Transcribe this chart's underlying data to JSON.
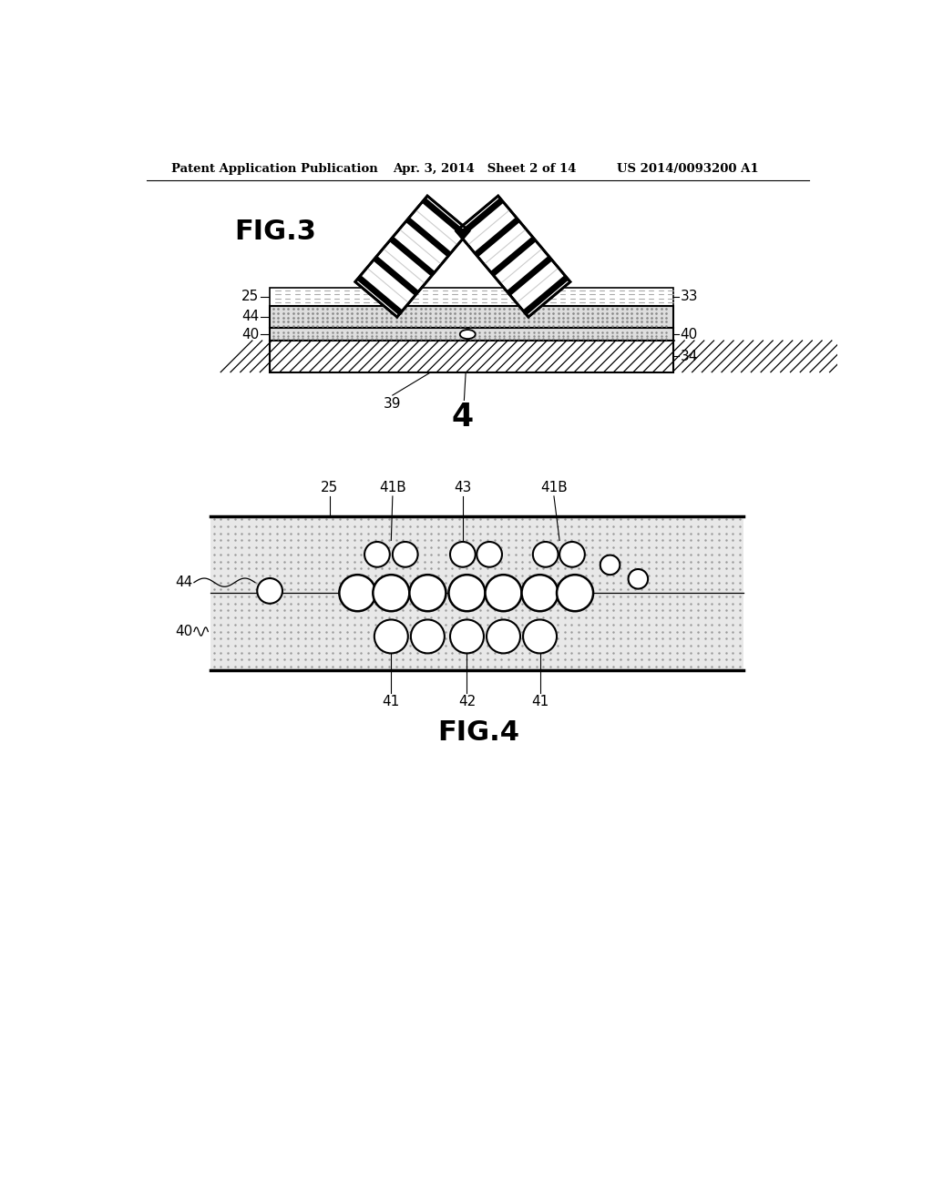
{
  "bg_color": "#ffffff",
  "header_left": "Patent Application Publication",
  "header_mid": "Apr. 3, 2014   Sheet 2 of 14",
  "header_right": "US 2014/0093200 A1",
  "fig3_label": "FIG.3",
  "fig4_label": "FIG.4"
}
